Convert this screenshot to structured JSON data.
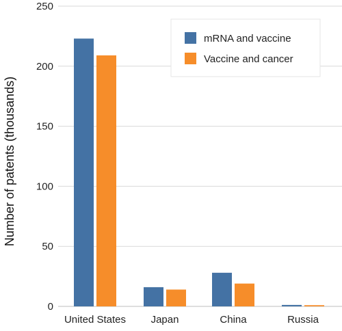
{
  "chart_data": {
    "type": "bar",
    "title": "",
    "xlabel": "",
    "ylabel": "Number of patents (thousands)",
    "categories": [
      "United States",
      "Japan",
      "China",
      "Russia"
    ],
    "series": [
      {
        "name": "mRNA and vaccine",
        "color": "#4472a4",
        "values": [
          223,
          16,
          28,
          1.2
        ]
      },
      {
        "name": "Vaccine and cancer",
        "color": "#f68d2a",
        "values": [
          209,
          14,
          19,
          1.0
        ]
      }
    ],
    "ylim": [
      0,
      250
    ],
    "yticks": [
      0,
      50,
      100,
      150,
      200,
      250
    ],
    "grid": true,
    "legend_position": "top-right"
  }
}
